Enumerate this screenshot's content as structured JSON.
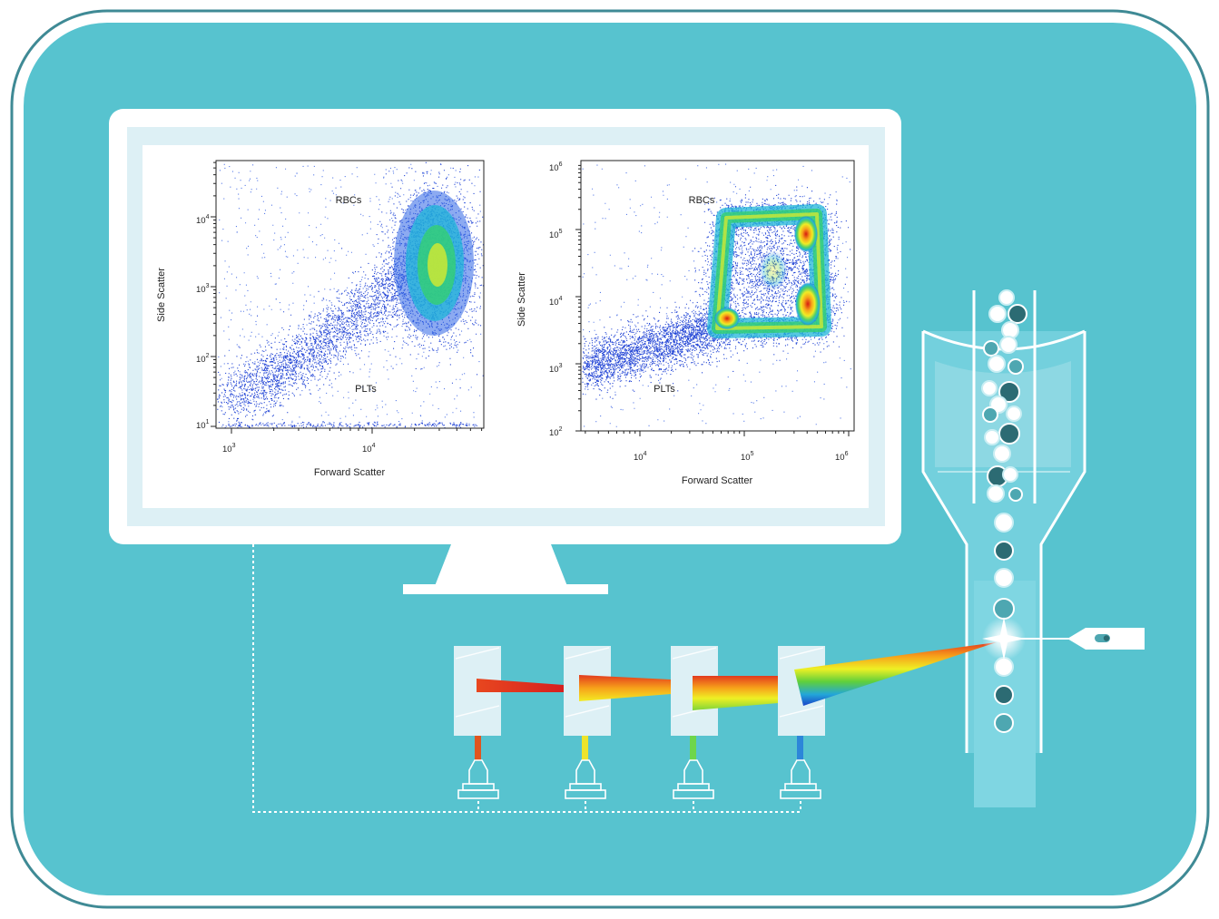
{
  "colors": {
    "background": "#57c3cf",
    "frame_border": "#3f8a95",
    "monitor": "#ffffff",
    "screen_inner": "#ddf0f5",
    "light_accent": "#9fdee7",
    "sheath": "#7fd6e2",
    "dark_cell": "#2c6b73",
    "medium_cell": "#4ea7b1"
  },
  "icons": {
    "monitor": "monitor-icon",
    "detector": "photodetector-icon",
    "filter": "dichroic-filter-icon",
    "laser": "laser-icon",
    "flow_cell": "flow-cell-icon"
  },
  "plots": [
    {
      "ylabel": "Side Scatter",
      "xlabel": "Forward Scatter",
      "top_label": "RBCs",
      "bottom_label": "PLTs",
      "x_ticks": [
        {
          "base": "10",
          "exp": "3"
        },
        {
          "base": "10",
          "exp": "4"
        }
      ],
      "y_ticks": [
        {
          "base": "10",
          "exp": "4"
        },
        {
          "base": "10",
          "exp": "3"
        },
        {
          "base": "10",
          "exp": "2"
        },
        {
          "base": "10",
          "exp": "1"
        }
      ]
    },
    {
      "ylabel": "Side Scatter",
      "xlabel": "Forward Scatter",
      "top_label": "RBCs",
      "bottom_label": "PLTs",
      "x_ticks": [
        {
          "base": "10",
          "exp": "4"
        },
        {
          "base": "10",
          "exp": "5"
        },
        {
          "base": "10",
          "exp": "6"
        }
      ],
      "y_ticks": [
        {
          "base": "10",
          "exp": "6"
        },
        {
          "base": "10",
          "exp": "5"
        },
        {
          "base": "10",
          "exp": "4"
        },
        {
          "base": "10",
          "exp": "3"
        },
        {
          "base": "10",
          "exp": "2"
        }
      ]
    }
  ]
}
